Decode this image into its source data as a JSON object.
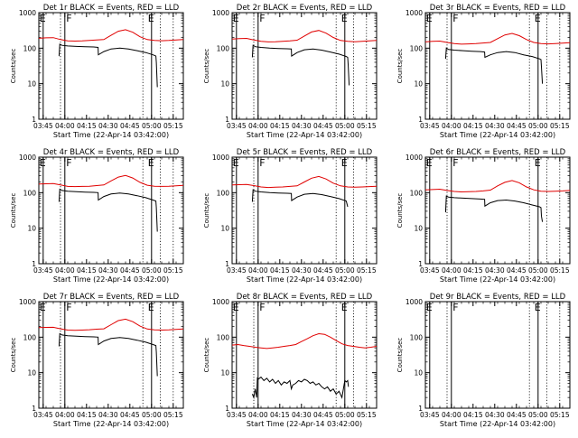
{
  "page": {
    "xlabel": "Start Time (22-Apr-14 03:42:00)",
    "ylabel": "Counts/sec",
    "x_ticks": [
      "03:45",
      "04:00",
      "04:15",
      "04:30",
      "04:45",
      "05:00",
      "05:15"
    ],
    "y_ticks": [
      "1",
      "10",
      "100",
      "1000"
    ],
    "markers": [
      {
        "label": "E",
        "time_min": 3
      },
      {
        "label": "F",
        "time_min": 18
      },
      {
        "label": "E",
        "time_min": 78
      }
    ],
    "colors": {
      "events": "#000000",
      "lld": "#e00000"
    }
  },
  "chart_data": [
    {
      "type": "line",
      "title": "Det 1r  BLACK = Events, RED = LLD",
      "xlim_min": [
        0,
        100
      ],
      "ylim": [
        1,
        1000
      ],
      "yscale": "log",
      "grid": false,
      "series": [
        {
          "values_key": "events",
          "x": [
            14,
            14.5,
            16,
            20,
            26,
            32,
            38,
            41,
            41.2,
            45,
            50,
            56,
            62,
            68,
            74,
            79,
            81,
            81.3,
            82
          ],
          "y": [
            60,
            130,
            120,
            115,
            112,
            110,
            108,
            105,
            65,
            80,
            95,
            100,
            95,
            85,
            75,
            65,
            60,
            40,
            8
          ]
        },
        {
          "values_key": "lld",
          "x": [
            0,
            5,
            10,
            15,
            20,
            25,
            30,
            35,
            40,
            45,
            50,
            55,
            60,
            65,
            70,
            75,
            80,
            85,
            90,
            95,
            100
          ],
          "y": [
            190,
            195,
            198,
            175,
            160,
            158,
            160,
            165,
            170,
            175,
            230,
            300,
            330,
            280,
            210,
            175,
            165,
            162,
            165,
            170,
            175
          ]
        }
      ]
    },
    {
      "type": "line",
      "title": "Det 2r  BLACK = Events, RED = LLD",
      "xlim_min": [
        0,
        100
      ],
      "ylim": [
        1,
        1000
      ],
      "yscale": "log",
      "grid": false,
      "series": [
        {
          "values_key": "events",
          "x": [
            14,
            14.5,
            16,
            20,
            26,
            32,
            38,
            41,
            41.2,
            45,
            50,
            56,
            62,
            68,
            74,
            79,
            80,
            80.3,
            81
          ],
          "y": [
            55,
            120,
            110,
            105,
            100,
            98,
            96,
            95,
            60,
            75,
            90,
            95,
            88,
            78,
            68,
            58,
            55,
            35,
            9
          ]
        },
        {
          "values_key": "lld",
          "x": [
            0,
            5,
            10,
            15,
            20,
            25,
            30,
            35,
            40,
            45,
            50,
            55,
            60,
            65,
            70,
            75,
            80,
            85,
            90,
            95,
            100
          ],
          "y": [
            180,
            185,
            188,
            170,
            155,
            150,
            152,
            155,
            160,
            168,
            220,
            285,
            315,
            265,
            200,
            165,
            155,
            152,
            155,
            160,
            165
          ]
        }
      ]
    },
    {
      "type": "line",
      "title": "Det 3r  BLACK = Events, RED = LLD",
      "xlim_min": [
        0,
        100
      ],
      "ylim": [
        1,
        1000
      ],
      "yscale": "log",
      "grid": false,
      "series": [
        {
          "values_key": "events",
          "x": [
            14,
            14.5,
            16,
            20,
            26,
            32,
            38,
            41,
            41.2,
            45,
            50,
            56,
            62,
            68,
            74,
            79,
            80,
            80.3,
            81
          ],
          "y": [
            50,
            100,
            92,
            88,
            85,
            82,
            80,
            78,
            55,
            65,
            75,
            80,
            75,
            65,
            58,
            50,
            48,
            30,
            10
          ]
        },
        {
          "values_key": "lld",
          "x": [
            0,
            5,
            10,
            15,
            20,
            25,
            30,
            35,
            40,
            45,
            50,
            55,
            60,
            65,
            70,
            75,
            80,
            85,
            90,
            95,
            100
          ],
          "y": [
            150,
            155,
            158,
            145,
            135,
            130,
            132,
            135,
            140,
            145,
            185,
            235,
            260,
            225,
            175,
            145,
            135,
            132,
            135,
            138,
            142
          ]
        }
      ]
    },
    {
      "type": "line",
      "title": "Det 4r  BLACK = Events, RED = LLD",
      "xlim_min": [
        0,
        100
      ],
      "ylim": [
        1,
        1000
      ],
      "yscale": "log",
      "grid": false,
      "series": [
        {
          "values_key": "events",
          "x": [
            14,
            14.5,
            16,
            20,
            26,
            32,
            38,
            41,
            41.2,
            45,
            50,
            56,
            62,
            68,
            74,
            79,
            81,
            81.3,
            82
          ],
          "y": [
            55,
            125,
            115,
            110,
            106,
            104,
            102,
            100,
            62,
            78,
            92,
            98,
            92,
            82,
            72,
            62,
            58,
            38,
            8
          ]
        },
        {
          "values_key": "lld",
          "x": [
            0,
            5,
            10,
            15,
            20,
            25,
            30,
            35,
            40,
            45,
            50,
            55,
            60,
            65,
            70,
            75,
            80,
            85,
            90,
            95,
            100
          ],
          "y": [
            175,
            178,
            180,
            165,
            150,
            148,
            150,
            152,
            158,
            165,
            215,
            275,
            305,
            258,
            195,
            162,
            152,
            150,
            152,
            156,
            160
          ]
        }
      ]
    },
    {
      "type": "line",
      "title": "Det 5r  BLACK = Events, RED = LLD",
      "xlim_min": [
        0,
        100
      ],
      "ylim": [
        1,
        1000
      ],
      "yscale": "log",
      "grid": false,
      "series": [
        {
          "values_key": "events",
          "x": [
            14,
            14.5,
            16,
            20,
            26,
            32,
            38,
            41,
            41.2,
            45,
            50,
            56,
            62,
            68,
            74,
            79,
            80
          ],
          "y": [
            55,
            120,
            110,
            105,
            100,
            98,
            96,
            95,
            60,
            75,
            90,
            95,
            88,
            78,
            68,
            58,
            40
          ]
        },
        {
          "values_key": "lld",
          "x": [
            0,
            5,
            10,
            15,
            20,
            25,
            30,
            35,
            40,
            45,
            50,
            55,
            60,
            65,
            70,
            75,
            80,
            85,
            90,
            95,
            100
          ],
          "y": [
            165,
            168,
            170,
            158,
            145,
            140,
            142,
            145,
            150,
            155,
            200,
            255,
            285,
            242,
            185,
            155,
            145,
            142,
            145,
            148,
            152
          ]
        }
      ]
    },
    {
      "type": "line",
      "title": "Det 6r  BLACK = Events, RED = LLD",
      "xlim_min": [
        0,
        100
      ],
      "ylim": [
        1,
        1000
      ],
      "yscale": "log",
      "grid": false,
      "series": [
        {
          "values_key": "events",
          "x": [
            14,
            14.5,
            16,
            20,
            26,
            32,
            38,
            41,
            41.2,
            45,
            50,
            56,
            62,
            68,
            74,
            79,
            80,
            80.3,
            81
          ],
          "y": [
            28,
            80,
            75,
            72,
            70,
            68,
            66,
            65,
            42,
            52,
            60,
            62,
            58,
            52,
            45,
            40,
            38,
            22,
            15
          ]
        },
        {
          "values_key": "lld",
          "x": [
            0,
            5,
            10,
            15,
            20,
            25,
            30,
            35,
            40,
            45,
            50,
            55,
            60,
            65,
            70,
            75,
            80,
            85,
            90,
            95,
            100
          ],
          "y": [
            120,
            122,
            125,
            115,
            108,
            105,
            106,
            108,
            112,
            118,
            155,
            195,
            220,
            190,
            145,
            120,
            110,
            108,
            110,
            112,
            115
          ]
        }
      ]
    },
    {
      "type": "line",
      "title": "Det 7r  BLACK = Events, RED = LLD",
      "xlim_min": [
        0,
        100
      ],
      "ylim": [
        1,
        1000
      ],
      "yscale": "log",
      "grid": false,
      "series": [
        {
          "values_key": "events",
          "x": [
            14,
            14.5,
            16,
            20,
            26,
            32,
            38,
            41,
            41.2,
            45,
            50,
            56,
            62,
            68,
            74,
            79,
            81,
            81.3,
            82
          ],
          "y": [
            55,
            125,
            115,
            110,
            106,
            104,
            102,
            100,
            62,
            78,
            92,
            98,
            92,
            82,
            72,
            62,
            58,
            38,
            8
          ]
        },
        {
          "values_key": "lld",
          "x": [
            0,
            5,
            10,
            15,
            20,
            25,
            30,
            35,
            40,
            45,
            50,
            55,
            60,
            65,
            70,
            75,
            80,
            85,
            90,
            95,
            100
          ],
          "y": [
            185,
            188,
            190,
            172,
            158,
            155,
            158,
            162,
            168,
            172,
            225,
            292,
            322,
            272,
            205,
            170,
            160,
            158,
            160,
            165,
            170
          ]
        }
      ]
    },
    {
      "type": "line",
      "title": "Det 8r  BLACK = Events, RED = LLD",
      "xlim_min": [
        0,
        100
      ],
      "ylim": [
        1,
        1000
      ],
      "yscale": "log",
      "grid": false,
      "series": [
        {
          "values_key": "events",
          "x": [
            14,
            15,
            16,
            17,
            17.5,
            18,
            20,
            22,
            24,
            26,
            28,
            30,
            32,
            34,
            36,
            38,
            40,
            41,
            42,
            44,
            46,
            48,
            50,
            52,
            54,
            56,
            58,
            60,
            62,
            64,
            66,
            68,
            70,
            72,
            74,
            76,
            78,
            79,
            80,
            80.5
          ],
          "y": [
            2.5,
            2,
            3.5,
            2,
            7,
            6.5,
            7.5,
            6,
            7,
            5.5,
            6.5,
            5,
            6,
            4.5,
            5.5,
            5,
            6,
            3.5,
            4.5,
            5,
            6,
            5.5,
            6.5,
            6,
            5,
            5.5,
            4.5,
            5,
            4,
            3.5,
            4,
            3,
            3.5,
            2.5,
            3,
            2,
            6,
            5.5,
            6,
            4
          ]
        },
        {
          "values_key": "lld",
          "x": [
            0,
            4,
            8,
            12,
            16,
            20,
            24,
            28,
            32,
            36,
            40,
            44,
            48,
            52,
            56,
            60,
            64,
            68,
            72,
            76,
            80,
            84,
            88,
            92,
            96,
            100
          ],
          "y": [
            60,
            62,
            58,
            55,
            52,
            50,
            48,
            50,
            52,
            55,
            58,
            62,
            75,
            90,
            110,
            125,
            120,
            100,
            80,
            65,
            58,
            55,
            52,
            50,
            52,
            55
          ]
        }
      ]
    },
    {
      "type": "line",
      "title": "Det 9r  BLACK = Events, RED = LLD",
      "xlim_min": [
        0,
        100
      ],
      "ylim": [
        1,
        1000
      ],
      "yscale": "log",
      "grid": false,
      "series": []
    }
  ]
}
